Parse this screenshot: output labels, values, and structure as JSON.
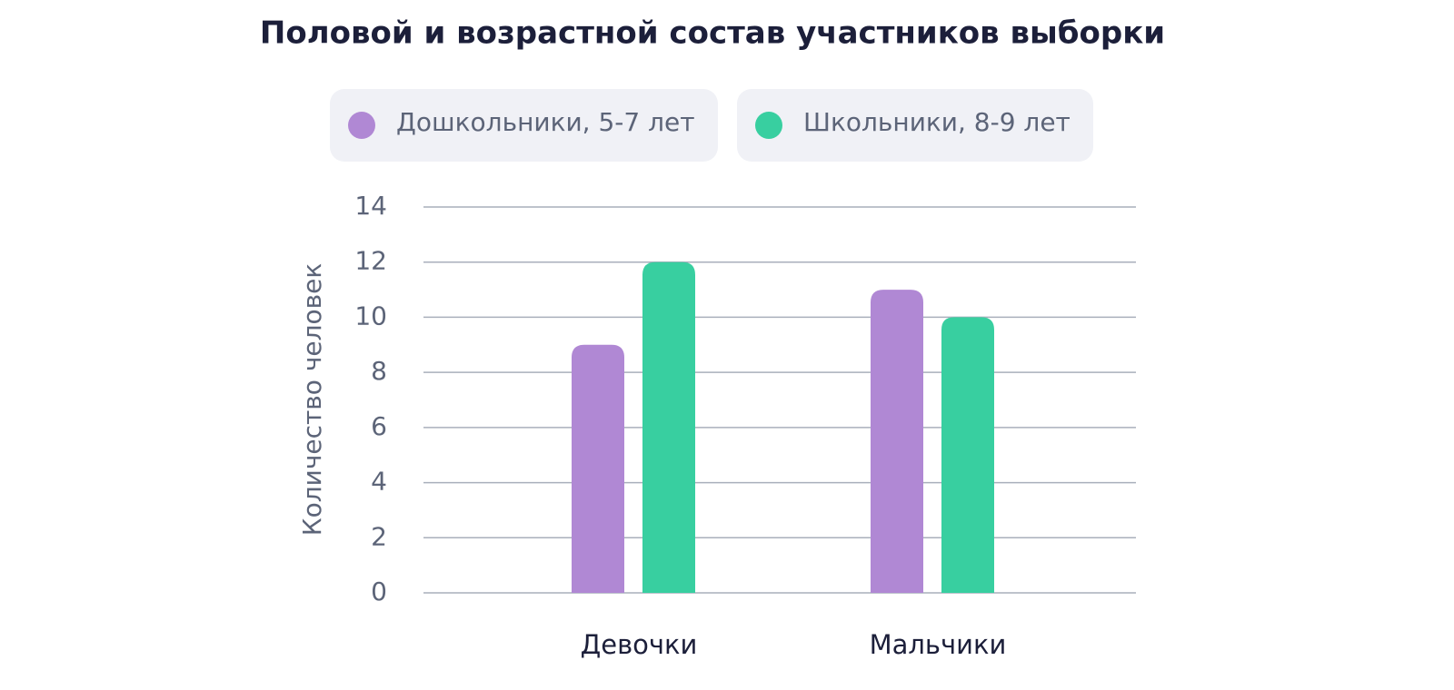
{
  "chart_data": {
    "type": "bar",
    "title": "Половой и возрастной состав участников выборки",
    "y_label": "Количество человек",
    "categories": [
      "Девочки",
      "Мальчики"
    ],
    "series": [
      {
        "name": "Дошкольники, 5-7 лет",
        "color": "#b088d4",
        "values": [
          9,
          11
        ]
      },
      {
        "name": "Школьники, 8-9 лет",
        "color": "#38cfa0",
        "values": [
          12,
          10
        ]
      }
    ],
    "ylim": [
      0,
      14
    ],
    "yticks": [
      0,
      2,
      4,
      6,
      8,
      10,
      12,
      14
    ],
    "grid": true,
    "legend": "top"
  }
}
